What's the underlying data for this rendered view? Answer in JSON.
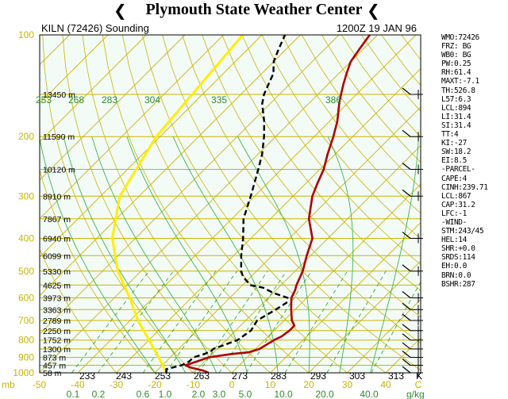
{
  "banner": {
    "title": "Plymouth State Weather Center"
  },
  "chart_data": {
    "type": "skew-t log-p sounding",
    "title_left": "KILN (72426) Sounding",
    "title_right": "1200Z 19 JAN 96",
    "pressure_labels": [
      "100",
      "200",
      "300",
      "400",
      "500",
      "600",
      "700",
      "800",
      "900",
      "1000"
    ],
    "bottom_left_label": "mb",
    "temperature_ticks": [
      "-50",
      "-40",
      "-30",
      "-20",
      "-10",
      "0",
      "10",
      "20",
      "30",
      "40"
    ],
    "temperature_tick_values": [
      -50,
      -40,
      -30,
      -20,
      -10,
      0,
      10,
      20,
      30,
      40
    ],
    "temperature_unit": "C",
    "mixing_ratio_labels": [
      "0.1",
      "0.2",
      "0.6",
      "1.0",
      "2.0",
      "3.0",
      "5.0",
      "10.0",
      "20.0",
      "40.0"
    ],
    "mixing_ratio_unit": "g/kg",
    "kelvin_labels_bottom": [
      "233",
      "243",
      "253",
      "263",
      "273",
      "283",
      "293",
      "303",
      "313",
      "K"
    ],
    "theta_labels_top": [
      "253",
      "268",
      "283",
      "304",
      "335",
      "386"
    ],
    "height_labels": [
      {
        "p": 150,
        "text": "13450 m"
      },
      {
        "p": 200,
        "text": "11590 m"
      },
      {
        "p": 250,
        "text": "10120 m"
      },
      {
        "p": 300,
        "text": "8910 m"
      },
      {
        "p": 350,
        "text": "7867 m"
      },
      {
        "p": 400,
        "text": "6940 m"
      },
      {
        "p": 450,
        "text": "6099 m"
      },
      {
        "p": 500,
        "text": "5330 m"
      },
      {
        "p": 550,
        "text": "4625 m"
      },
      {
        "p": 600,
        "text": "3973 m"
      },
      {
        "p": 650,
        "text": "3363 m"
      },
      {
        "p": 700,
        "text": "2789 m"
      },
      {
        "p": 750,
        "text": "2250 m"
      },
      {
        "p": 800,
        "text": "1752 m"
      },
      {
        "p": 850,
        "text": "1300 m"
      },
      {
        "p": 900,
        "text": "873 m"
      },
      {
        "p": 950,
        "text": "457 m"
      },
      {
        "p": 1000,
        "text": "58 m"
      }
    ],
    "series": [
      {
        "name": "temperature",
        "color": "#b00000",
        "points": [
          [
            1000,
            -6
          ],
          [
            985,
            -8
          ],
          [
            965,
            -12
          ],
          [
            950,
            -14
          ],
          [
            925,
            -12
          ],
          [
            900,
            -10
          ],
          [
            880,
            -5
          ],
          [
            870,
            -1
          ],
          [
            850,
            1
          ],
          [
            800,
            2.5
          ],
          [
            780,
            3.5
          ],
          [
            750,
            4
          ],
          [
            725,
            4
          ],
          [
            700,
            2
          ],
          [
            650,
            -1
          ],
          [
            600,
            -4
          ],
          [
            570,
            -5
          ],
          [
            550,
            -6
          ],
          [
            500,
            -8
          ],
          [
            450,
            -11
          ],
          [
            400,
            -14
          ],
          [
            350,
            -20
          ],
          [
            300,
            -25
          ],
          [
            275,
            -27
          ],
          [
            250,
            -29
          ],
          [
            225,
            -32
          ],
          [
            200,
            -35
          ],
          [
            180,
            -38
          ],
          [
            160,
            -42
          ],
          [
            150,
            -44
          ],
          [
            140,
            -46
          ],
          [
            130,
            -48
          ],
          [
            120,
            -50
          ],
          [
            110,
            -51
          ],
          [
            100,
            -52
          ]
        ]
      },
      {
        "name": "dewpoint",
        "color": "#000000",
        "dashed": true,
        "points": [
          [
            1000,
            -17
          ],
          [
            975,
            -18
          ],
          [
            950,
            -15
          ],
          [
            925,
            -14
          ],
          [
            900,
            -14
          ],
          [
            880,
            -12
          ],
          [
            860,
            -11
          ],
          [
            850,
            -11
          ],
          [
            800,
            -7
          ],
          [
            750,
            -6
          ],
          [
            700,
            -7
          ],
          [
            650,
            -5
          ],
          [
            620,
            -4
          ],
          [
            600,
            -5
          ],
          [
            580,
            -10
          ],
          [
            560,
            -14
          ],
          [
            550,
            -18
          ],
          [
            520,
            -22
          ],
          [
            500,
            -24
          ],
          [
            450,
            -28
          ],
          [
            400,
            -32
          ],
          [
            350,
            -37
          ],
          [
            300,
            -41
          ],
          [
            250,
            -46
          ],
          [
            225,
            -49
          ],
          [
            200,
            -53
          ],
          [
            180,
            -57
          ],
          [
            160,
            -62
          ],
          [
            150,
            -64
          ],
          [
            130,
            -67
          ],
          [
            120,
            -70
          ],
          [
            110,
            -72
          ],
          [
            100,
            -74
          ]
        ]
      }
    ],
    "parcel_line_color": "#ffee00",
    "parcel_points": [
      [
        1000,
        -17
      ],
      [
        900,
        -23
      ],
      [
        800,
        -30
      ],
      [
        700,
        -38
      ],
      [
        600,
        -46
      ],
      [
        500,
        -56
      ],
      [
        400,
        -66
      ],
      [
        300,
        -75
      ],
      [
        200,
        -81
      ],
      [
        100,
        -85
      ]
    ],
    "grid": true
  },
  "indices": [
    "WMO:72426",
    "FRZ: BG",
    "WB0: BG",
    "PW:0.25",
    "RH:61.4",
    "MAXT:-7.1",
    "TH:526.8",
    "L57:6.3",
    "LCL:894",
    "LI:31.4",
    "SI:31.4",
    "TT:4",
    "KI:-27",
    "SW:18.2",
    "EI:8.5",
    "-PARCEL-",
    "CAPE:4",
    "CINH:239.71",
    "LCL:867",
    "CAP:31.2",
    "LFC:-1",
    "-WIND-",
    "STM:243/45",
    "HEL:14",
    "SHR:+0.0",
    "SRDS:114",
    "EH:0.0",
    "BRN:0.0",
    "BSHR:287"
  ],
  "colors": {
    "background": "#f3fbf7",
    "grid_yellow": "#c8b400",
    "label_green": "#2e8b2e",
    "mixing_green": "#22a022",
    "isotherm_green": "#3cb44b",
    "axis_black": "#000000"
  }
}
